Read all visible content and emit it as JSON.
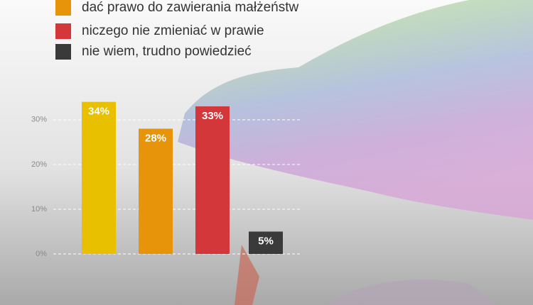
{
  "chart_data": {
    "type": "bar",
    "categories": [
      null,
      "dać prawo do zawierania małżeństw",
      "niczego nie zmieniać w prawie",
      "nie wiem, trudno powiedzieć"
    ],
    "values": [
      34,
      28,
      33,
      5
    ],
    "value_labels": [
      "34%",
      "28%",
      "33%",
      "5%"
    ],
    "colors": [
      "#e8c000",
      "#e8940a",
      "#d4373a",
      "#3a3a3a"
    ],
    "ylim": [
      0,
      36
    ],
    "yticks": [
      {
        "value": 0,
        "label": "0%"
      },
      {
        "value": 10,
        "label": "10%"
      },
      {
        "value": 20,
        "label": "20%"
      },
      {
        "value": 30,
        "label": "30%"
      }
    ],
    "grid": true
  }
}
